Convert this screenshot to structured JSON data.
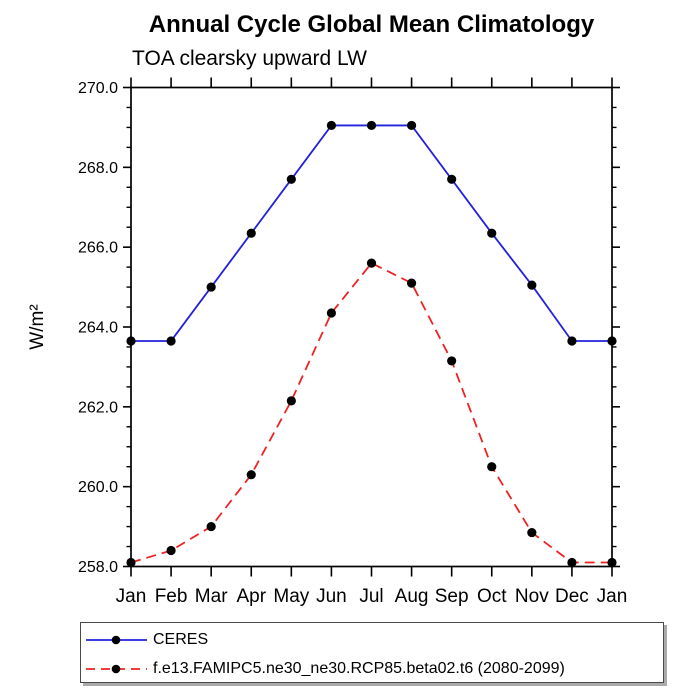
{
  "page": {
    "background": "#ffffff",
    "axis_color": "#000000",
    "marker_color": "#000000"
  },
  "chart_data": {
    "type": "line",
    "title": "Annual Cycle Global Mean Climatology",
    "subtitle": "TOA clearsky upward LW",
    "ylabel": "W/m²",
    "xlabel": "",
    "categories": [
      "Jan",
      "Feb",
      "Mar",
      "Apr",
      "May",
      "Jun",
      "Jul",
      "Aug",
      "Sep",
      "Oct",
      "Nov",
      "Dec",
      "Jan"
    ],
    "ylim": [
      258.0,
      270.0
    ],
    "y_ticks": [
      258.0,
      260.0,
      262.0,
      264.0,
      266.0,
      268.0,
      270.0
    ],
    "y_tick_labels": [
      "258.0",
      "260.0",
      "262.0",
      "264.0",
      "266.0",
      "268.0",
      "270.0"
    ],
    "y_minor_step": 0.5,
    "grid": false,
    "legend_position": "bottom-left",
    "series": [
      {
        "name": "CERES",
        "color": "#2222dd",
        "style": "solid",
        "marker": "circle",
        "values": [
          263.65,
          263.65,
          265.0,
          266.35,
          267.7,
          269.05,
          269.05,
          269.05,
          267.7,
          266.35,
          265.05,
          263.65,
          263.65
        ]
      },
      {
        "name": "f.e13.FAMIPC5.ne30_ne30.RCP85.beta02.t6 (2080-2099)",
        "color": "#ee2222",
        "style": "dashed",
        "marker": "circle",
        "values": [
          258.1,
          258.4,
          259.0,
          260.3,
          262.15,
          264.35,
          265.6,
          265.1,
          263.15,
          260.5,
          258.85,
          258.1,
          258.1
        ]
      }
    ]
  }
}
